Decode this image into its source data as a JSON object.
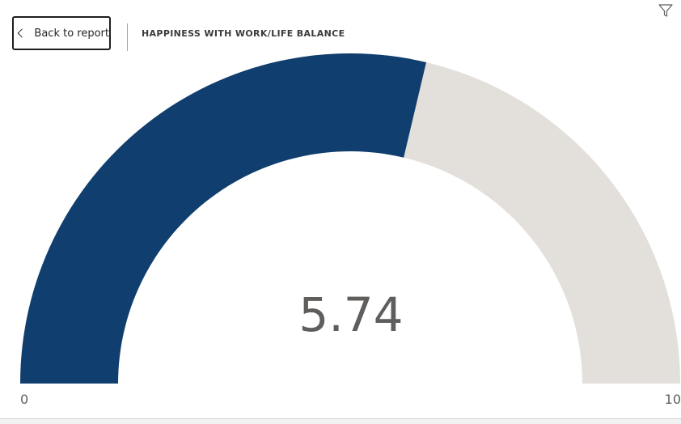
{
  "header": {
    "back_label": "Back to report",
    "title": "HAPPINESS WITH WORK/LIFE BALANCE"
  },
  "icons": {
    "back": "chevron-left-icon",
    "filter": "filter-icon"
  },
  "colors": {
    "fill": "#103e6e",
    "track": "#e3e0dc",
    "text": "#605e5c"
  },
  "chart_data": {
    "type": "gauge",
    "value": 5.74,
    "value_label": "5.74",
    "min": 0,
    "max": 10,
    "min_label": "0",
    "max_label": "10"
  }
}
